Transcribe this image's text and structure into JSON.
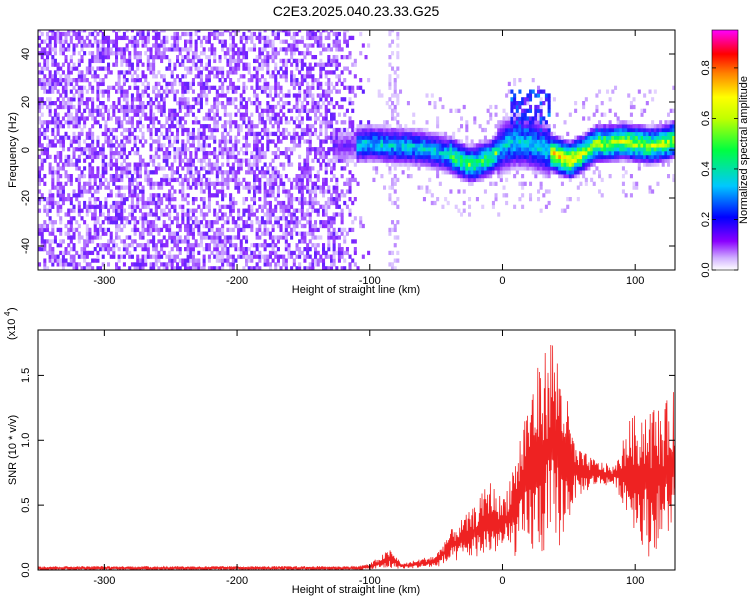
{
  "figure": {
    "title": "C2E3.2025.040.23.33.G25"
  },
  "chart_data": [
    {
      "type": "heatmap",
      "xlabel": "Height of straight line (km)",
      "ylabel": "Frequency (Hz)",
      "xlim": [
        -350,
        130
      ],
      "ylim": [
        -50,
        50
      ],
      "xticks": [
        "-300",
        "-200",
        "-100",
        "0",
        "100"
      ],
      "yticks": [
        "-40",
        "-20",
        "0",
        "20",
        "40"
      ],
      "colorbar": {
        "label": "Normalized spectral amplitude",
        "range": [
          0.0,
          0.95
        ],
        "ticks": [
          "0.0",
          "0.2",
          "0.4",
          "0.6",
          "0.8"
        ]
      },
      "signal_track": [
        {
          "x": -120,
          "y": 1
        },
        {
          "x": -100,
          "y": 2
        },
        {
          "x": -80,
          "y": 1
        },
        {
          "x": -60,
          "y": 0
        },
        {
          "x": -40,
          "y": -3
        },
        {
          "x": -25,
          "y": -7
        },
        {
          "x": -10,
          "y": -4
        },
        {
          "x": 0,
          "y": 1
        },
        {
          "x": 10,
          "y": 3
        },
        {
          "x": 20,
          "y": 2
        },
        {
          "x": 30,
          "y": 0
        },
        {
          "x": 40,
          "y": -3
        },
        {
          "x": 50,
          "y": -5
        },
        {
          "x": 60,
          "y": -2
        },
        {
          "x": 70,
          "y": 2
        },
        {
          "x": 80,
          "y": 2
        },
        {
          "x": 90,
          "y": 3
        },
        {
          "x": 100,
          "y": 2
        },
        {
          "x": 110,
          "y": 1
        },
        {
          "x": 120,
          "y": 2
        },
        {
          "x": 130,
          "y": 4
        }
      ],
      "noise_region_x": [
        -350,
        -100
      ],
      "colormap": [
        "#ffffff",
        "#8a00ff",
        "#0000ff",
        "#00e0ff",
        "#00ff00",
        "#ffff00",
        "#ff8000",
        "#ff0000",
        "#ff00ff"
      ]
    },
    {
      "type": "line",
      "xlabel": "Height of straight line (km)",
      "ylabel": "SNR (10 * v/v)",
      "multiplier": "(x10^4)",
      "xlim": [
        -350,
        130
      ],
      "ylim": [
        0,
        1.85
      ],
      "xticks": [
        "-300",
        "-200",
        "-100",
        "0",
        "100"
      ],
      "yticks": [
        "0.0",
        "0.5",
        "1.0",
        "1.5"
      ],
      "series": [
        {
          "color": "#ee2222",
          "envelope": [
            {
              "x": -350,
              "lo": 0.0,
              "hi": 0.03
            },
            {
              "x": -200,
              "lo": 0.0,
              "hi": 0.03
            },
            {
              "x": -110,
              "lo": 0.0,
              "hi": 0.03
            },
            {
              "x": -100,
              "lo": 0.0,
              "hi": 0.05
            },
            {
              "x": -85,
              "lo": 0.01,
              "hi": 0.16
            },
            {
              "x": -75,
              "lo": 0.01,
              "hi": 0.05
            },
            {
              "x": -50,
              "lo": 0.02,
              "hi": 0.12
            },
            {
              "x": -40,
              "lo": 0.05,
              "hi": 0.3
            },
            {
              "x": -30,
              "lo": 0.08,
              "hi": 0.4
            },
            {
              "x": -20,
              "lo": 0.1,
              "hi": 0.5
            },
            {
              "x": -10,
              "lo": 0.1,
              "hi": 0.7
            },
            {
              "x": 0,
              "lo": 0.15,
              "hi": 0.55
            },
            {
              "x": 10,
              "lo": 0.1,
              "hi": 0.9
            },
            {
              "x": 20,
              "lo": 0.1,
              "hi": 1.4
            },
            {
              "x": 30,
              "lo": 0.1,
              "hi": 1.65
            },
            {
              "x": 37,
              "lo": 0.1,
              "hi": 1.85
            },
            {
              "x": 45,
              "lo": 0.2,
              "hi": 1.55
            },
            {
              "x": 55,
              "lo": 0.55,
              "hi": 0.95
            },
            {
              "x": 70,
              "lo": 0.65,
              "hi": 0.85
            },
            {
              "x": 85,
              "lo": 0.65,
              "hi": 0.8
            },
            {
              "x": 95,
              "lo": 0.4,
              "hi": 1.15
            },
            {
              "x": 110,
              "lo": 0.1,
              "hi": 1.3
            },
            {
              "x": 120,
              "lo": 0.2,
              "hi": 1.25
            },
            {
              "x": 130,
              "lo": 0.3,
              "hi": 1.4
            }
          ]
        }
      ]
    }
  ]
}
